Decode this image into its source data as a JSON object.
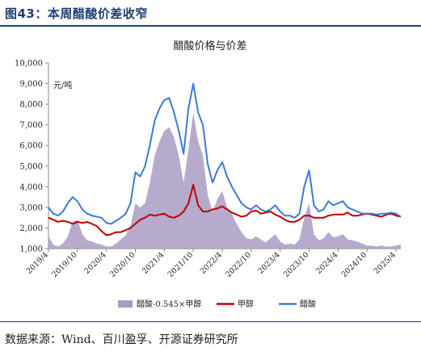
{
  "figure": {
    "title": "图43：本周醋酸价差收窄",
    "source": "数据来源：Wind、百川盈孚、开源证券研究所"
  },
  "colors": {
    "title_blue": "#1f3f73",
    "spread": "#a99bc4",
    "methanol": "#c00000",
    "acetic_acid": "#3a7bd5"
  },
  "chart_data": {
    "type": "line",
    "title": "醋酸价格与价差",
    "ylabel": "元/吨",
    "ylim": [
      1000,
      10000
    ],
    "yticks": [
      "1,000",
      "2,000",
      "3,000",
      "4,000",
      "5,000",
      "6,000",
      "7,000",
      "8,000",
      "9,000",
      "10,000"
    ],
    "xticks": [
      "2019/4",
      "2019/10",
      "2020/4",
      "2020/10",
      "2021/4",
      "2021/10",
      "2022/4",
      "2022/10",
      "2023/4",
      "2023/10",
      "2024/4",
      "2024/10",
      "2025/4"
    ],
    "x_range": [
      "2019-04",
      "2025-05"
    ],
    "legend_position": "bottom",
    "grid": false,
    "series": [
      {
        "name": "醋酸-0.545×甲醇",
        "kind": "area",
        "x": [
          "2019-04",
          "2019-05",
          "2019-06",
          "2019-07",
          "2019-08",
          "2019-09",
          "2019-10",
          "2019-11",
          "2019-12",
          "2020-01",
          "2020-02",
          "2020-03",
          "2020-04",
          "2020-05",
          "2020-06",
          "2020-07",
          "2020-08",
          "2020-09",
          "2020-10",
          "2020-11",
          "2020-12",
          "2021-01",
          "2021-02",
          "2021-03",
          "2021-04",
          "2021-05",
          "2021-06",
          "2021-07",
          "2021-08",
          "2021-09",
          "2021-10",
          "2021-11",
          "2021-12",
          "2022-01",
          "2022-02",
          "2022-03",
          "2022-04",
          "2022-05",
          "2022-06",
          "2022-07",
          "2022-08",
          "2022-09",
          "2022-10",
          "2022-11",
          "2022-12",
          "2023-01",
          "2023-02",
          "2023-03",
          "2023-04",
          "2023-05",
          "2023-06",
          "2023-07",
          "2023-08",
          "2023-09",
          "2023-10",
          "2023-11",
          "2023-12",
          "2024-01",
          "2024-02",
          "2024-03",
          "2024-04",
          "2024-05",
          "2024-06",
          "2024-07",
          "2024-08",
          "2024-09",
          "2024-10",
          "2024-11",
          "2024-12",
          "2025-01",
          "2025-02",
          "2025-03",
          "2025-04",
          "2025-05"
        ],
        "values": [
          1600,
          1200,
          1100,
          1250,
          1600,
          2300,
          2400,
          1700,
          1400,
          1350,
          1250,
          1200,
          1100,
          1100,
          1250,
          1450,
          1650,
          2100,
          3200,
          3000,
          3200,
          4200,
          5500,
          6200,
          6700,
          6900,
          6400,
          5500,
          4200,
          5800,
          7600,
          6200,
          5500,
          3600,
          2800,
          3400,
          3800,
          3000,
          2700,
          2200,
          1800,
          1500,
          1450,
          1600,
          1450,
          1300,
          1500,
          1700,
          1350,
          1200,
          1250,
          1200,
          1450,
          2500,
          3200,
          1700,
          1400,
          1500,
          1800,
          1550,
          1600,
          1700,
          1450,
          1400,
          1350,
          1250,
          1150,
          1150,
          1100,
          1150,
          1100,
          1100,
          1150,
          1200
        ]
      },
      {
        "name": "甲醇",
        "kind": "line",
        "x": [
          "2019-04",
          "2019-05",
          "2019-06",
          "2019-07",
          "2019-08",
          "2019-09",
          "2019-10",
          "2019-11",
          "2019-12",
          "2020-01",
          "2020-02",
          "2020-03",
          "2020-04",
          "2020-05",
          "2020-06",
          "2020-07",
          "2020-08",
          "2020-09",
          "2020-10",
          "2020-11",
          "2020-12",
          "2021-01",
          "2021-02",
          "2021-03",
          "2021-04",
          "2021-05",
          "2021-06",
          "2021-07",
          "2021-08",
          "2021-09",
          "2021-10",
          "2021-11",
          "2021-12",
          "2022-01",
          "2022-02",
          "2022-03",
          "2022-04",
          "2022-05",
          "2022-06",
          "2022-07",
          "2022-08",
          "2022-09",
          "2022-10",
          "2022-11",
          "2022-12",
          "2023-01",
          "2023-02",
          "2023-03",
          "2023-04",
          "2023-05",
          "2023-06",
          "2023-07",
          "2023-08",
          "2023-09",
          "2023-10",
          "2023-11",
          "2023-12",
          "2024-01",
          "2024-02",
          "2024-03",
          "2024-04",
          "2024-05",
          "2024-06",
          "2024-07",
          "2024-08",
          "2024-09",
          "2024-10",
          "2024-11",
          "2024-12",
          "2025-01",
          "2025-02",
          "2025-03",
          "2025-04",
          "2025-05"
        ],
        "values": [
          2500,
          2400,
          2300,
          2350,
          2300,
          2200,
          2300,
          2250,
          2300,
          2200,
          2100,
          1850,
          1650,
          1700,
          1800,
          1800,
          1900,
          2000,
          2200,
          2400,
          2500,
          2650,
          2600,
          2650,
          2700,
          2550,
          2500,
          2600,
          2800,
          3200,
          4100,
          3100,
          2800,
          2800,
          2900,
          2950,
          3050,
          2900,
          2750,
          2650,
          2550,
          2600,
          2800,
          2850,
          2700,
          2750,
          2800,
          2650,
          2550,
          2400,
          2300,
          2300,
          2400,
          2600,
          2600,
          2500,
          2500,
          2500,
          2600,
          2650,
          2650,
          2650,
          2750,
          2600,
          2600,
          2650,
          2700,
          2650,
          2600,
          2550,
          2650,
          2700,
          2600,
          2550
        ]
      },
      {
        "name": "醋酸",
        "kind": "line",
        "x": [
          "2019-04",
          "2019-05",
          "2019-06",
          "2019-07",
          "2019-08",
          "2019-09",
          "2019-10",
          "2019-11",
          "2019-12",
          "2020-01",
          "2020-02",
          "2020-03",
          "2020-04",
          "2020-05",
          "2020-06",
          "2020-07",
          "2020-08",
          "2020-09",
          "2020-10",
          "2020-11",
          "2020-12",
          "2021-01",
          "2021-02",
          "2021-03",
          "2021-04",
          "2021-05",
          "2021-06",
          "2021-07",
          "2021-08",
          "2021-09",
          "2021-10",
          "2021-11",
          "2021-12",
          "2022-01",
          "2022-02",
          "2022-03",
          "2022-04",
          "2022-05",
          "2022-06",
          "2022-07",
          "2022-08",
          "2022-09",
          "2022-10",
          "2022-11",
          "2022-12",
          "2023-01",
          "2023-02",
          "2023-03",
          "2023-04",
          "2023-05",
          "2023-06",
          "2023-07",
          "2023-08",
          "2023-09",
          "2023-10",
          "2023-11",
          "2023-12",
          "2024-01",
          "2024-02",
          "2024-03",
          "2024-04",
          "2024-05",
          "2024-06",
          "2024-07",
          "2024-08",
          "2024-09",
          "2024-10",
          "2024-11",
          "2024-12",
          "2025-01",
          "2025-02",
          "2025-03",
          "2025-04",
          "2025-05"
        ],
        "values": [
          3000,
          2700,
          2600,
          2800,
          3200,
          3500,
          3300,
          2900,
          2700,
          2600,
          2550,
          2500,
          2250,
          2200,
          2350,
          2500,
          2700,
          3200,
          4700,
          4500,
          5000,
          6000,
          7200,
          7800,
          8200,
          8300,
          7600,
          6700,
          5600,
          7800,
          9000,
          7600,
          7000,
          5100,
          4200,
          4800,
          5200,
          4500,
          4000,
          3600,
          3200,
          3000,
          2900,
          3100,
          2900,
          2800,
          2900,
          3100,
          2800,
          2600,
          2600,
          2500,
          2700,
          4000,
          4800,
          3100,
          2800,
          2900,
          3300,
          3100,
          3200,
          3300,
          3000,
          2900,
          2800,
          2700,
          2700,
          2700,
          2650,
          2700,
          2700,
          2750,
          2700,
          2550
        ]
      }
    ]
  }
}
